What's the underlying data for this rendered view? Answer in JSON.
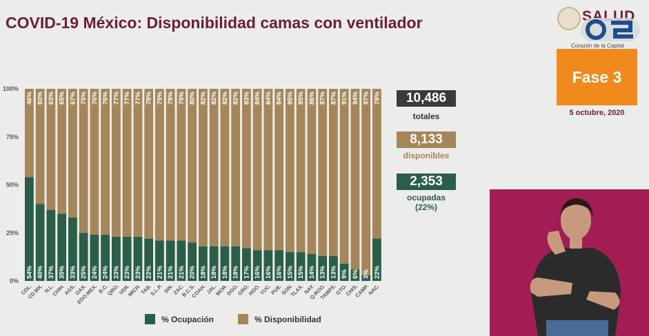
{
  "header": {
    "title": "COVID-19 México: Disponibilidad camas con ventilador",
    "logo_text": "SALUD",
    "logo_subtitle": "Corazón de la Capital",
    "phase": "Fase 3",
    "date": "5 octubre, 2020"
  },
  "stats": {
    "total_value": "10,486",
    "total_label": "totales",
    "available_value": "8,133",
    "available_label": "disponibles",
    "occupied_value": "2,353",
    "occupied_label": "ocupadas",
    "occupied_pct": "(22%)"
  },
  "legend": {
    "occupancy": "% Ocupación",
    "availability": "% Disponibilidad"
  },
  "colors": {
    "occupancy": "#2a5e48",
    "availability": "#a4865a",
    "title": "#6b2038",
    "phase": "#f08a1c",
    "stat_total": "#3a3a3a",
    "stat_available": "#a4865a",
    "stat_occupied": "#2a5e48"
  },
  "chart_data": {
    "type": "bar",
    "stacked": true,
    "orientation": "vertical",
    "categories": [
      "COL.",
      "CD.MX.",
      "N.L.",
      "CHIH.",
      "AGS.",
      "OAX.",
      "EDO.MEX.",
      "B.C.",
      "QRO.",
      "VER.",
      "MICH.",
      "TAB.",
      "S.L.P.",
      "SIN.",
      "ZAC.",
      "B.C.S.",
      "COAH.",
      "JAL.",
      "MOR.",
      "DGO.",
      "GRO.",
      "HGO.",
      "YUC.",
      "PUE.",
      "SON.",
      "TLAX.",
      "NAY.",
      "Q.ROO.",
      "TAMPS.",
      "GTO.",
      "CHIS.",
      "CAMP.",
      "NAC."
    ],
    "series": [
      {
        "name": "% Ocupación",
        "values": [
          54,
          40,
          37,
          35,
          33,
          25,
          24,
          24,
          23,
          23,
          23,
          22,
          21,
          21,
          21,
          20,
          18,
          18,
          18,
          18,
          17,
          16,
          16,
          16,
          15,
          15,
          14,
          13,
          13,
          9,
          6,
          3,
          22
        ]
      },
      {
        "name": "% Disponibilidad",
        "values": [
          46,
          60,
          63,
          65,
          67,
          75,
          76,
          76,
          77,
          77,
          77,
          78,
          79,
          79,
          79,
          80,
          82,
          82,
          82,
          82,
          83,
          84,
          84,
          84,
          85,
          85,
          86,
          87,
          87,
          91,
          94,
          97,
          78
        ]
      }
    ],
    "y_ticks": [
      "0%",
      "25%",
      "50%",
      "75%",
      "100%"
    ],
    "ylim": [
      0,
      100
    ],
    "legend_position": "bottom-center"
  }
}
